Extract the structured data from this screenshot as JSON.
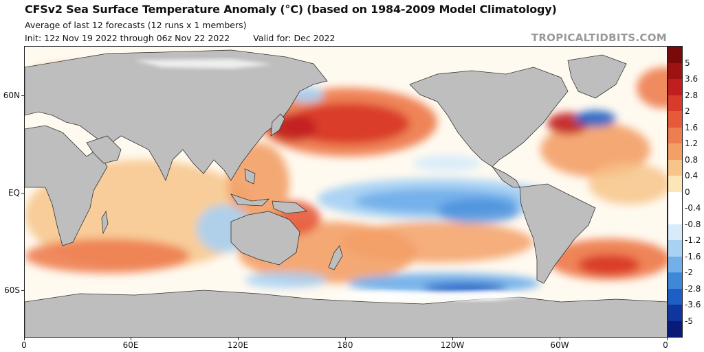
{
  "header": {
    "title": "CFSv2 Sea Surface Temperature Anomaly (°C) (based on 1984-2009 Model Climatology)",
    "subtitle": "Average of last 12 forecasts (12 runs x 1 members)",
    "init": "Init: 12z Nov 19 2022 through 06z Nov 22 2022",
    "valid": "Valid for: Dec 2022"
  },
  "brand": "TROPICALTIDBITS.COM",
  "map": {
    "lat_labels": [
      "60N",
      "EQ",
      "60S"
    ],
    "lon_labels": [
      "0",
      "60E",
      "120E",
      "180",
      "120W",
      "60W",
      "0"
    ],
    "land_color": "#bebebe",
    "ocean_neutral_color": "#ffffff"
  },
  "colorbar": {
    "labels": [
      "5",
      "3.6",
      "2.8",
      "2",
      "1.6",
      "1.2",
      "0.8",
      "0.4",
      "0",
      "-0.4",
      "-0.8",
      "-1.2",
      "-1.6",
      "-2",
      "-2.8",
      "-3.6",
      "-5"
    ],
    "colors": [
      "#7a0a0a",
      "#a01212",
      "#c11f1f",
      "#d93b2a",
      "#e65a3a",
      "#ee7d4f",
      "#f3a067",
      "#f7c48a",
      "#fce6b8",
      "#ffffff",
      "#ffffff",
      "#d6ebfb",
      "#a8d1f3",
      "#73b0ea",
      "#3f87d9",
      "#1d5fc4",
      "#1034a0",
      "#0a1a78"
    ]
  }
}
